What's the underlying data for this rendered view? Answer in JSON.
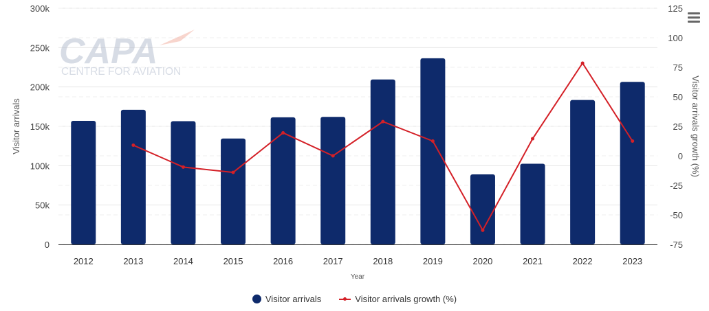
{
  "menu": {
    "icon": "hamburger-menu-icon"
  },
  "logo": {
    "name": "CAPA",
    "tagline": "CENTRE FOR AVIATION"
  },
  "chart_data": {
    "type": "bar+line",
    "categories": [
      "2012",
      "2013",
      "2014",
      "2015",
      "2016",
      "2017",
      "2018",
      "2019",
      "2020",
      "2021",
      "2022",
      "2023"
    ],
    "series": [
      {
        "name": "Visitor arrivals",
        "type": "bar",
        "axis": "left",
        "color": "#0e2a6b",
        "values": [
          157000,
          171000,
          156500,
          134500,
          161500,
          162000,
          209500,
          236500,
          89000,
          102500,
          183500,
          206500
        ]
      },
      {
        "name": "Visitor arrivals growth (%)",
        "type": "line",
        "axis": "right",
        "color": "#d42027",
        "values": [
          null,
          9,
          -9.5,
          -14,
          19.5,
          0,
          29,
          12.5,
          -63,
          14.5,
          78.5,
          12.5
        ]
      }
    ],
    "xlabel": "Year",
    "ylabel_left": "Visitor arrivals",
    "ylabel_right": "Visitor arrivals growth (%)",
    "ylim_left": [
      0,
      300000
    ],
    "yticks_left": [
      "0",
      "50k",
      "100k",
      "150k",
      "200k",
      "250k",
      "300k"
    ],
    "ylim_right": [
      -75,
      125
    ],
    "yticks_right": [
      "-75",
      "-50",
      "-25",
      "0",
      "25",
      "50",
      "75",
      "100",
      "125"
    ],
    "grid": true,
    "legend_position": "bottom-center"
  }
}
